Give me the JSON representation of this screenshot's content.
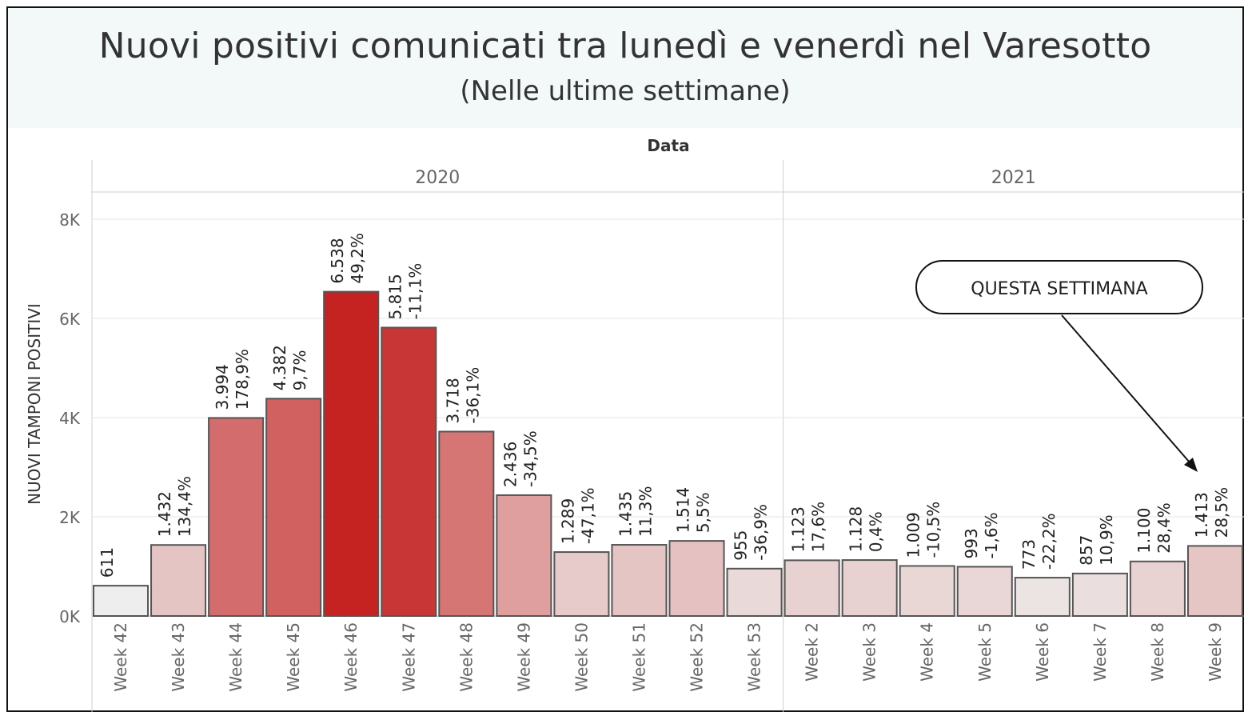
{
  "header": {
    "title": "Nuovi positivi comunicati tra lunedì e venerdì nel Varesotto",
    "subtitle": "(Nelle ultime settimane)"
  },
  "colors": {
    "low": "#eeeeee",
    "high": "#c42322",
    "border": "#555555",
    "grid": "#e6e6e6",
    "header_bg": "#f3f8f8"
  },
  "annotation": {
    "text": "QUESTA SETTIMANA",
    "target": "Week 9"
  },
  "chart_data": {
    "type": "bar",
    "title": "Nuovi positivi comunicati tra lunedì e venerdì nel Varesotto",
    "subtitle": "(Nelle ultime settimane)",
    "column_header": "Data",
    "ylabel": "NUOVI TAMPONI POSITIVI",
    "ylim": [
      0,
      8000
    ],
    "yticks": [
      0,
      2000,
      4000,
      6000,
      8000
    ],
    "ytick_labels": [
      "0K",
      "2K",
      "4K",
      "6K",
      "8K"
    ],
    "grid": true,
    "groups": [
      {
        "name": "2020",
        "categories": [
          "Week 42",
          "Week 43",
          "Week 44",
          "Week 45",
          "Week 46",
          "Week 47",
          "Week 48",
          "Week 49",
          "Week 50",
          "Week 51",
          "Week 52",
          "Week 53"
        ],
        "values": [
          611,
          1432,
          3994,
          4382,
          6538,
          5815,
          3718,
          2436,
          1289,
          1435,
          1514,
          955
        ],
        "value_labels": [
          "611",
          "1.432",
          "3.994",
          "4.382",
          "6.538",
          "5.815",
          "3.718",
          "2.436",
          "1.289",
          "1.435",
          "1.514",
          "955"
        ],
        "pct_labels": [
          "",
          "134,4%",
          "178,9%",
          "9,7%",
          "49,2%",
          "-11,1%",
          "-36,1%",
          "-34,5%",
          "-47,1%",
          "11,3%",
          "5,5%",
          "-36,9%"
        ]
      },
      {
        "name": "2021",
        "categories": [
          "Week 2",
          "Week 3",
          "Week 4",
          "Week 5",
          "Week 6",
          "Week 7",
          "Week 8",
          "Week 9"
        ],
        "values": [
          1123,
          1128,
          1009,
          993,
          773,
          857,
          1100,
          1413
        ],
        "value_labels": [
          "1.123",
          "1.128",
          "1.009",
          "993",
          "773",
          "857",
          "1.100",
          "1.413"
        ],
        "pct_labels": [
          "17,6%",
          "0,4%",
          "-10,5%",
          "-1,6%",
          "-22,2%",
          "10,9%",
          "28,4%",
          "28,5%"
        ]
      }
    ]
  }
}
